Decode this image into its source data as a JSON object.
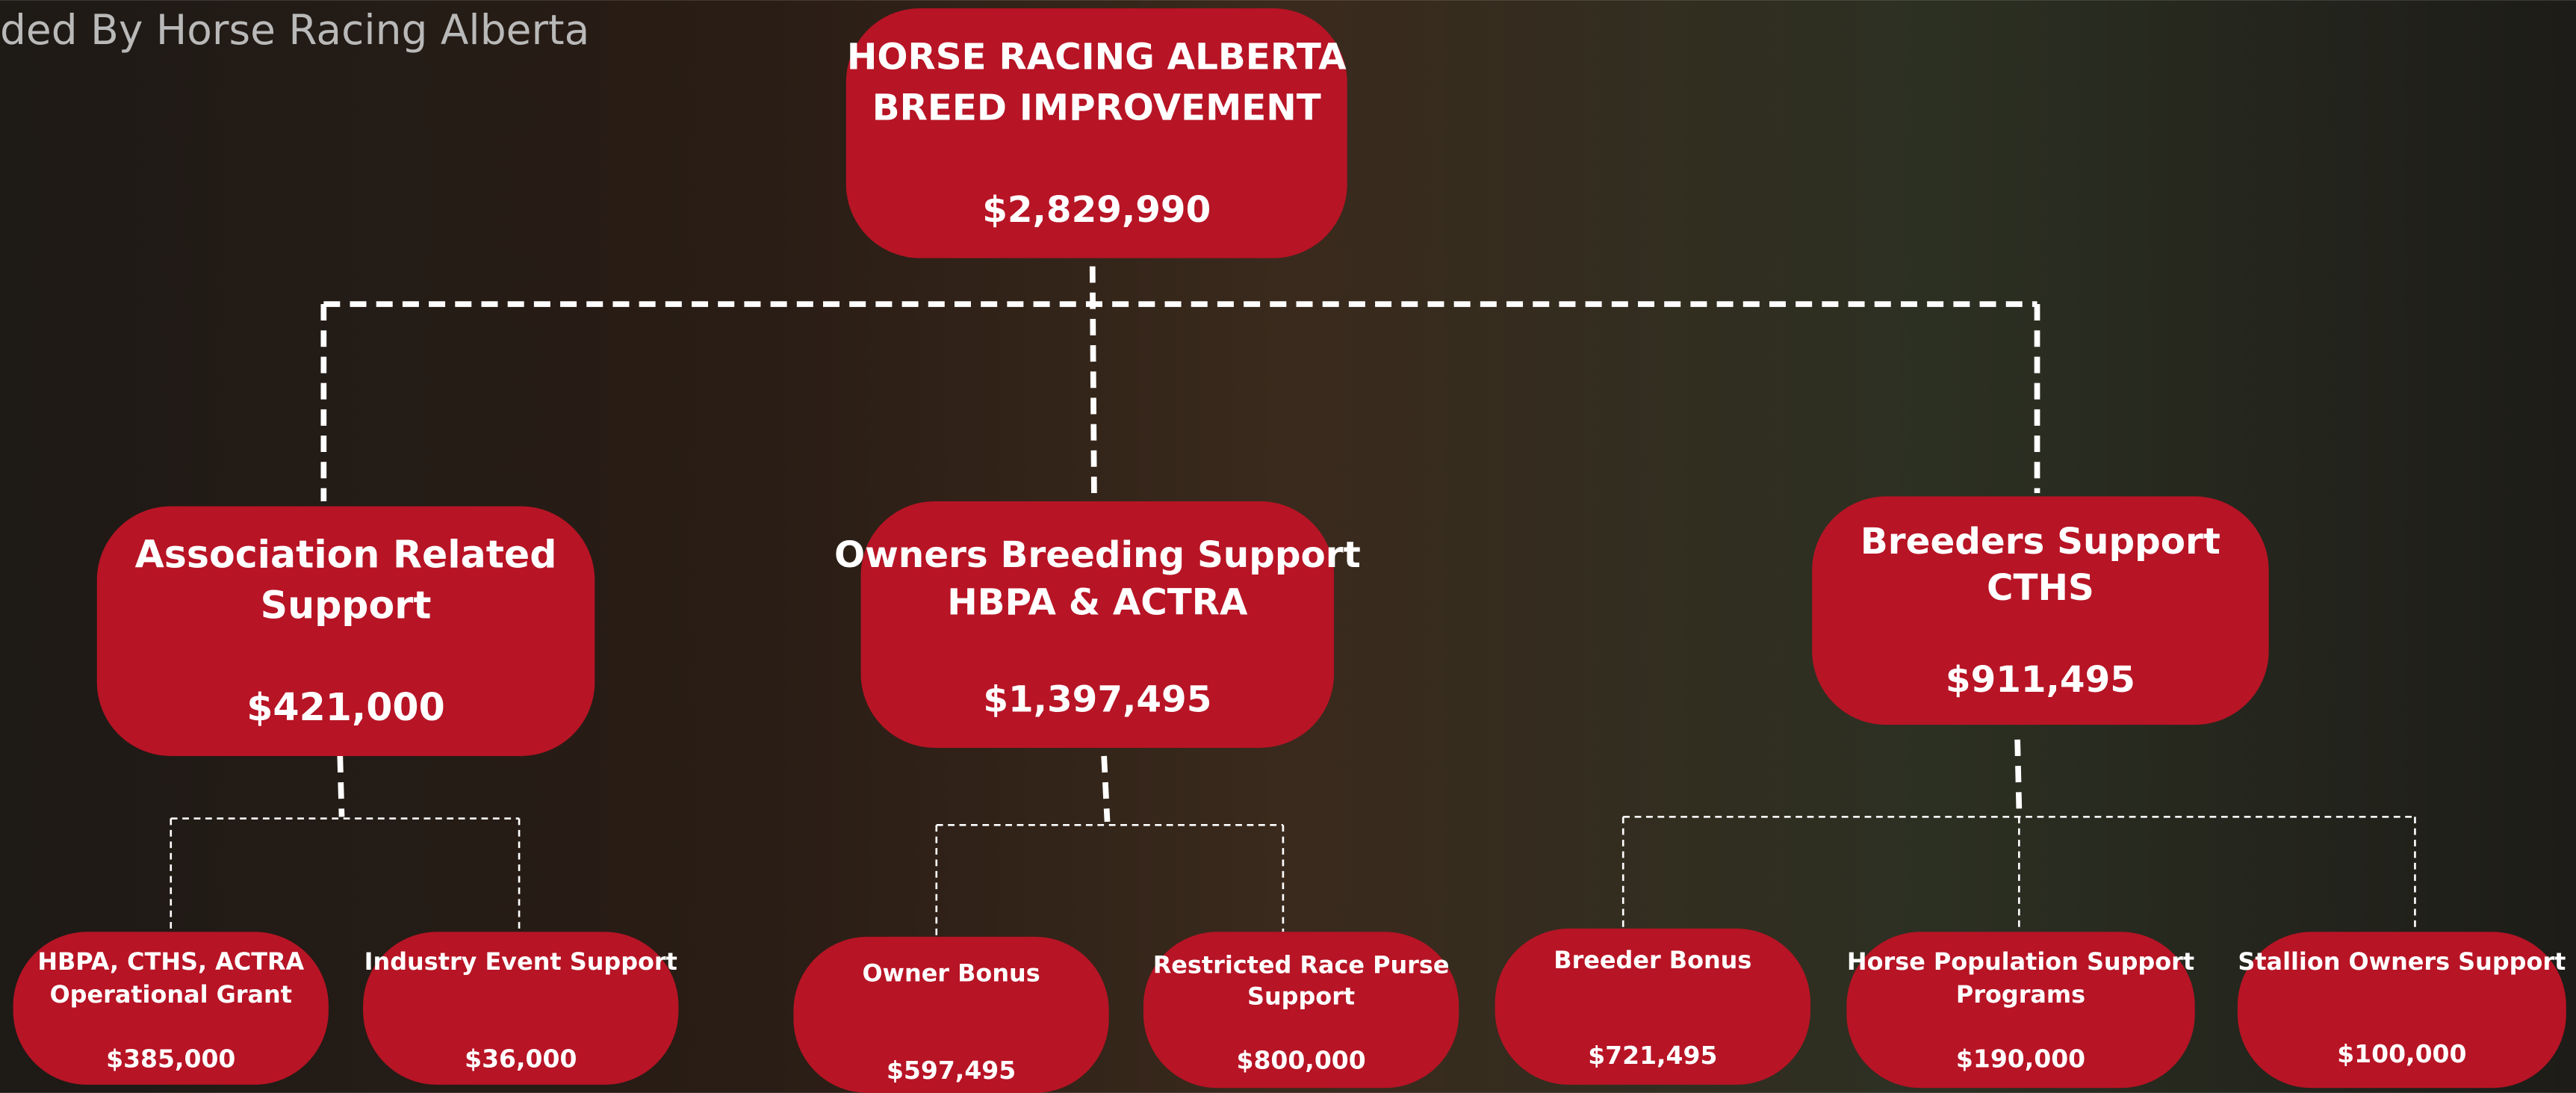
{
  "header": {
    "text": "ded By Horse Racing Alberta"
  },
  "nodes": [
    {
      "lines": [
        "HORSE RACING ALBERTA",
        "BREED IMPROVEMENT"
      ],
      "amount": "$2,829,990"
    },
    {
      "lines": [
        "Association Related",
        "Support"
      ],
      "amount": "$421,000"
    },
    {
      "lines": [
        "Owners Breeding Support",
        "HBPA & ACTRA"
      ],
      "amount": "$1,397,495"
    },
    {
      "lines": [
        "Breeders Support",
        "CTHS"
      ],
      "amount": "$911,495"
    },
    {
      "lines": [
        "HBPA, CTHS, ACTRA",
        "Operational Grant"
      ],
      "amount": "$385,000"
    },
    {
      "lines": [
        "Industry Event Support"
      ],
      "amount": "$36,000"
    },
    {
      "lines": [
        "Owner Bonus"
      ],
      "amount": "$597,495"
    },
    {
      "lines": [
        "Restricted Race Purse",
        "Support"
      ],
      "amount": "$800,000"
    },
    {
      "lines": [
        "Breeder Bonus"
      ],
      "amount": "$721,495"
    },
    {
      "lines": [
        "Horse Population Support",
        "Programs"
      ],
      "amount": "$190,000"
    },
    {
      "lines": [
        "Stallion Owners Support"
      ],
      "amount": "$100,000"
    }
  ]
}
